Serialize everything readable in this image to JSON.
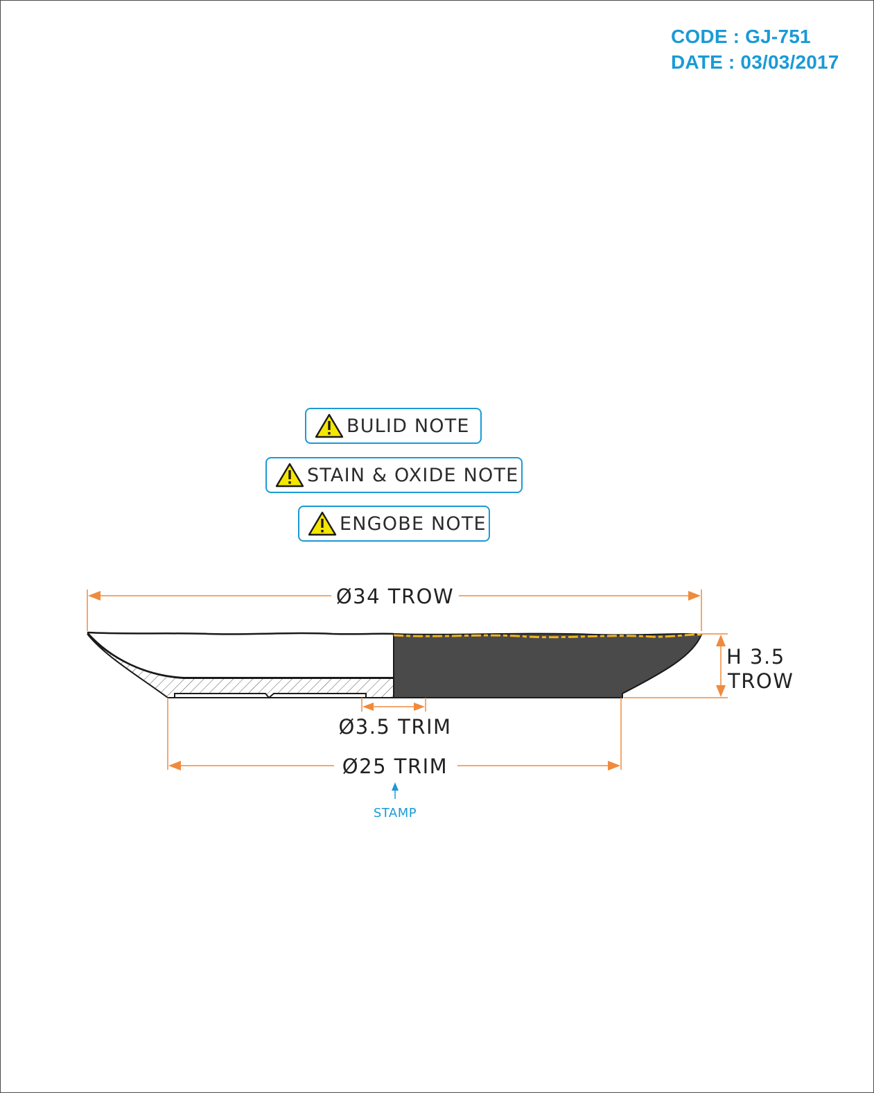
{
  "header": {
    "code": "CODE : GJ-751",
    "date": "DATE : 03/03/2017"
  },
  "notes": [
    {
      "label": "BULID NOTE",
      "icon": "warning-triangle-icon"
    },
    {
      "label": "STAIN & OXIDE NOTE",
      "icon": "warning-triangle-icon"
    },
    {
      "label": "ENGOBE NOTE",
      "icon": "warning-triangle-icon"
    }
  ],
  "dimensions": {
    "top_diameter": "Ø34 TROW",
    "height_line1": "H 3.5",
    "height_line2": "TROW",
    "inner_trim": "Ø3.5 TRIM",
    "foot_diameter": "Ø25 TRIM"
  },
  "stamp": {
    "label": "STAMP"
  },
  "colors": {
    "accent": "#1a9ad6",
    "dimension_lines": "#f08a3c",
    "glaze_body": "#4a4a4a",
    "rim_glaze": "#f0b41e",
    "warning_fill": "#f5e600"
  }
}
